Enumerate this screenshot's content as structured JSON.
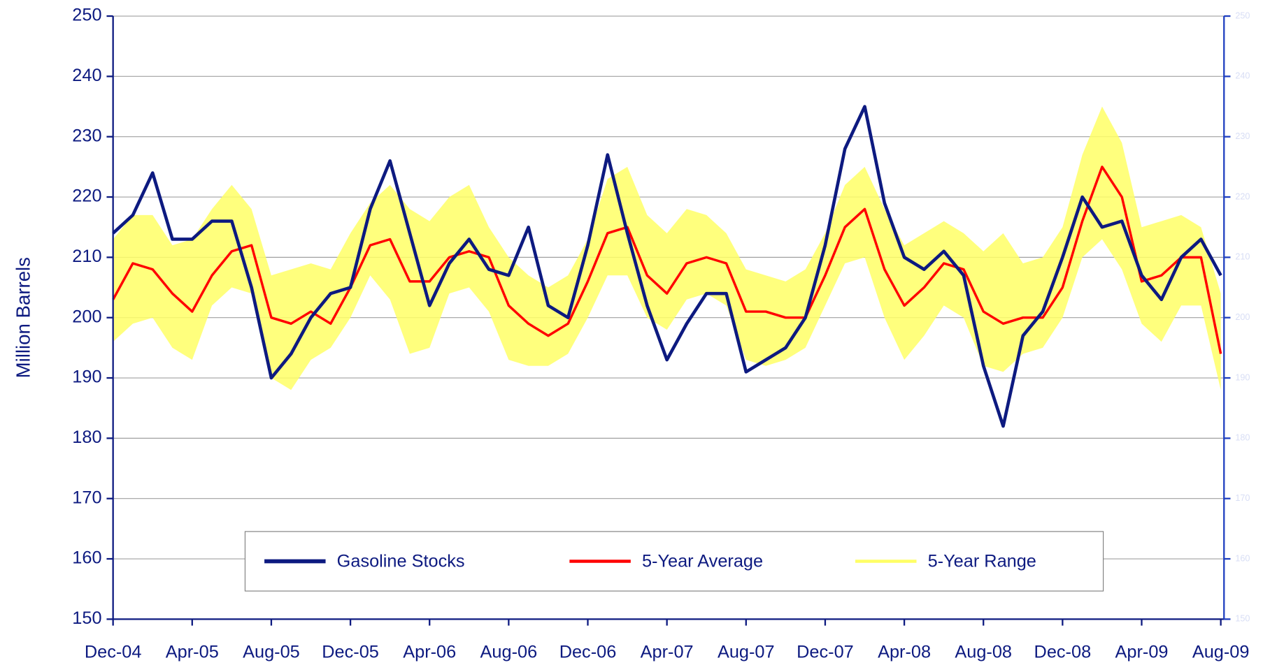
{
  "chart_data": {
    "type": "line",
    "ylabel": "Million Barrels",
    "categories": [
      "Dec-04",
      null,
      null,
      null,
      "Apr-05",
      null,
      null,
      null,
      "Aug-05",
      null,
      null,
      null,
      "Dec-05",
      null,
      null,
      null,
      "Apr-06",
      null,
      null,
      null,
      "Aug-06",
      null,
      null,
      null,
      "Dec-06",
      null,
      null,
      null,
      "Apr-07",
      null,
      null,
      null,
      "Aug-07",
      null,
      null,
      null,
      "Dec-07",
      null,
      null,
      null,
      "Apr-08",
      null,
      null,
      null,
      "Aug-08",
      null,
      null,
      null,
      "Dec-08",
      null,
      null,
      null,
      "Apr-09",
      null,
      null,
      null,
      "Aug-09"
    ],
    "series": [
      {
        "name": "Gasoline Stocks",
        "color": "#0d1a80",
        "values": [
          214,
          217,
          224,
          213,
          213,
          216,
          216,
          205,
          190,
          194,
          200,
          204,
          205,
          218,
          226,
          214,
          202,
          209,
          213,
          208,
          207,
          215,
          202,
          200,
          212,
          227,
          214,
          202,
          193,
          199,
          204,
          204,
          191,
          193,
          195,
          200,
          212,
          228,
          235,
          219,
          210,
          208,
          211,
          207,
          192,
          182,
          197,
          201,
          210,
          220,
          215,
          216,
          207,
          203,
          210,
          213,
          207
        ]
      },
      {
        "name": "5-Year Average",
        "color": "#ff0000",
        "values": [
          203,
          209,
          208,
          204,
          201,
          207,
          211,
          212,
          200,
          199,
          201,
          199,
          205,
          212,
          213,
          206,
          206,
          210,
          211,
          210,
          202,
          199,
          197,
          199,
          206,
          214,
          215,
          207,
          204,
          209,
          210,
          209,
          201,
          201,
          200,
          200,
          207,
          215,
          218,
          208,
          202,
          205,
          209,
          208,
          201,
          199,
          200,
          200,
          205,
          216,
          225,
          220,
          206,
          207,
          210,
          210,
          194
        ]
      },
      {
        "name": "5-Year Range",
        "color": "#ffff66",
        "low": [
          196,
          199,
          200,
          195,
          193,
          202,
          205,
          204,
          190,
          188,
          193,
          195,
          200,
          207,
          203,
          194,
          195,
          204,
          205,
          201,
          193,
          192,
          192,
          194,
          200,
          207,
          207,
          200,
          198,
          203,
          204,
          202,
          193,
          192,
          193,
          195,
          202,
          209,
          210,
          200,
          193,
          197,
          202,
          200,
          192,
          191,
          194,
          195,
          200,
          210,
          213,
          208,
          199,
          196,
          202,
          202,
          188
        ],
        "high": [
          213,
          217,
          217,
          212,
          213,
          218,
          222,
          218,
          207,
          208,
          209,
          208,
          214,
          219,
          222,
          218,
          216,
          220,
          222,
          215,
          210,
          207,
          205,
          207,
          213,
          223,
          225,
          217,
          214,
          218,
          217,
          214,
          208,
          207,
          206,
          208,
          214,
          222,
          225,
          218,
          212,
          214,
          216,
          214,
          211,
          214,
          209,
          210,
          215,
          227,
          235,
          229,
          215,
          216,
          217,
          215,
          204
        ]
      }
    ],
    "ylim": [
      150,
      250
    ],
    "yticks": [
      150,
      160,
      170,
      180,
      190,
      200,
      210,
      220,
      230,
      240,
      250
    ],
    "y2lim": [
      150,
      250
    ],
    "y2ticks": [
      150,
      160,
      170,
      180,
      190,
      200,
      210,
      220,
      230,
      240,
      250
    ],
    "grid": true,
    "legend": "bottom"
  }
}
